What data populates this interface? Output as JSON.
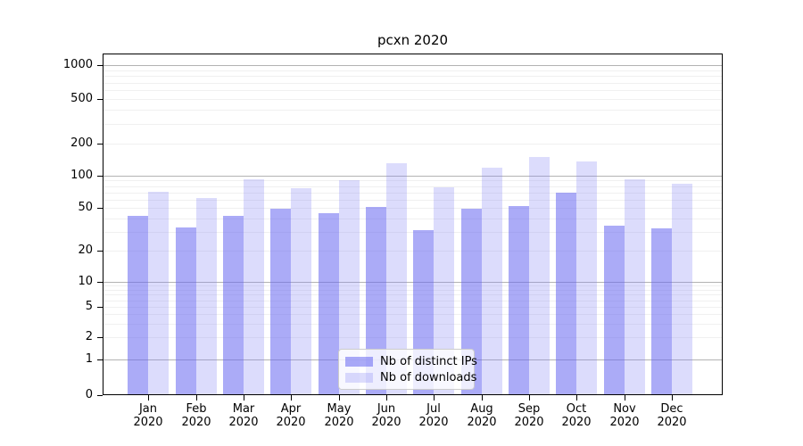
{
  "title": "pcxn 2020",
  "colors": {
    "ips_bar": "rgba(102,102,240,0.55)",
    "downloads_bar": "rgba(128,128,246,0.28)",
    "major_grid": "#b3b3b3",
    "minor_grid": "#f0f0f0"
  },
  "legend": {
    "ips_label": "Nb of distinct IPs",
    "downloads_label": "Nb of downloads"
  },
  "chart_data": {
    "type": "bar",
    "title": "pcxn 2020",
    "xlabel": "",
    "ylabel": "",
    "yscale": "symlog",
    "categories": [
      "Jan",
      "Feb",
      "Mar",
      "Apr",
      "May",
      "Jun",
      "Jul",
      "Aug",
      "Sep",
      "Oct",
      "Nov",
      "Dec"
    ],
    "year_label": "2020",
    "series": [
      {
        "name": "Nb of distinct IPs",
        "color": "rgba(102,102,240,0.55)",
        "values": [
          42,
          33,
          42,
          49,
          45,
          51,
          31,
          49,
          52,
          70,
          34,
          32
        ]
      },
      {
        "name": "Nb of downloads",
        "color": "rgba(128,128,246,0.28)",
        "values": [
          71,
          62,
          93,
          76,
          91,
          130,
          78,
          118,
          150,
          135,
          93,
          84
        ]
      }
    ],
    "yticks": [
      0,
      1,
      2,
      5,
      10,
      20,
      50,
      100,
      200,
      500,
      1000
    ],
    "ylim": [
      0,
      1500
    ],
    "grid": true,
    "legend_position": "lower center"
  }
}
